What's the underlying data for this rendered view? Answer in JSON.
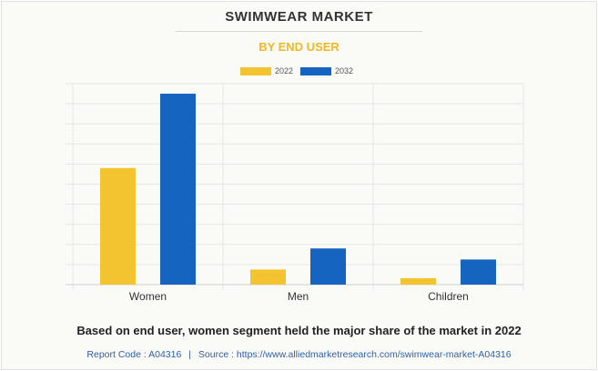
{
  "title": "SWIMWEAR MARKET",
  "subtitle": "BY END USER",
  "caption": "Based on end user, women segment held the major share of the market in 2022",
  "source": {
    "report_code": "Report Code : A04316",
    "separator": "|",
    "source_text": "Source : https://www.alliedmarketresearch.com/swimwear-market-A04316"
  },
  "colors": {
    "2022": "#f4c430",
    "2032": "#1565c0",
    "subtitle": "#f2b722"
  },
  "chart_data": {
    "type": "bar",
    "categories": [
      "Women",
      "Men",
      "Children"
    ],
    "series": [
      {
        "name": "2022",
        "values": [
          58,
          7.5,
          3.2
        ]
      },
      {
        "name": "2032",
        "values": [
          95,
          18,
          12.5
        ]
      }
    ],
    "ylim": [
      0,
      100
    ],
    "grid": true,
    "legend_position": "top-center",
    "y_tick_labels_shown": false
  }
}
